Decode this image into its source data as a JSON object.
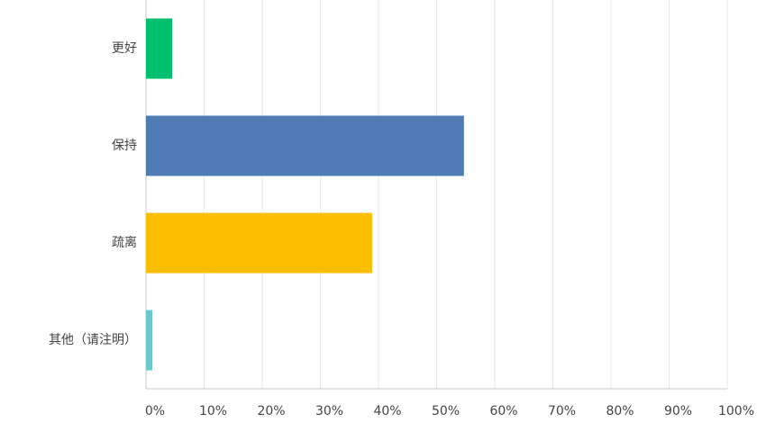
{
  "chart_data": {
    "type": "barh",
    "categories": [
      "更好",
      "保持",
      "疏离",
      "其他（请注明）"
    ],
    "values": [
      4.5,
      54.7,
      38.9,
      1.1
    ],
    "colors": [
      "#00bf6f",
      "#507cb5",
      "#f9be00",
      "#6bc8cd"
    ],
    "xlim": [
      0,
      100
    ],
    "xticks": [
      {
        "value": 0,
        "label": "0%"
      },
      {
        "value": 10,
        "label": "10%"
      },
      {
        "value": 20,
        "label": "20%"
      },
      {
        "value": 30,
        "label": "30%"
      },
      {
        "value": 40,
        "label": "40%"
      },
      {
        "value": 50,
        "label": "50%"
      },
      {
        "value": 60,
        "label": "60%"
      },
      {
        "value": 70,
        "label": "70%"
      },
      {
        "value": 80,
        "label": "80%"
      },
      {
        "value": 90,
        "label": "90%"
      },
      {
        "value": 100,
        "label": "100%"
      }
    ],
    "grid": true
  }
}
